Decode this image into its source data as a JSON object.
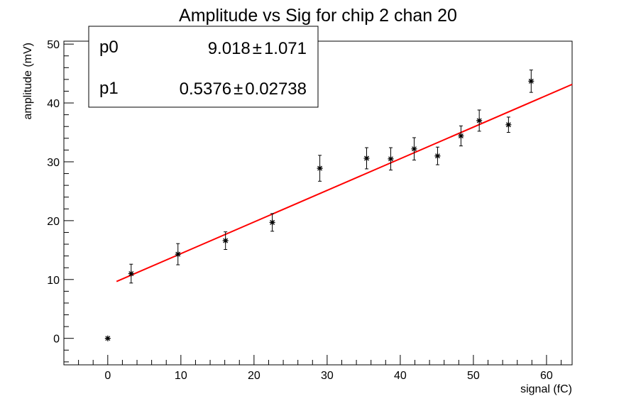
{
  "chart_data": {
    "type": "scatter",
    "title": "Amplitude vs Sig for chip 2 chan 20",
    "xlabel": "signal (fC)",
    "ylabel": "amplitude (mV)",
    "xlim": [
      -6,
      63.5
    ],
    "ylim": [
      -4.5,
      50.5
    ],
    "xticks": [
      0,
      10,
      20,
      30,
      40,
      50,
      60
    ],
    "yticks": [
      0,
      10,
      20,
      30,
      40,
      50
    ],
    "grid": false,
    "marker": "asterisk",
    "series": [
      {
        "points": [
          {
            "x": 0.0,
            "y": 0.0,
            "err": 0.0
          },
          {
            "x": 3.2,
            "y": 11.0,
            "err": 1.6
          },
          {
            "x": 9.6,
            "y": 14.3,
            "err": 1.8
          },
          {
            "x": 16.1,
            "y": 16.6,
            "err": 1.5
          },
          {
            "x": 22.5,
            "y": 19.7,
            "err": 1.5
          },
          {
            "x": 29.0,
            "y": 28.9,
            "err": 2.2
          },
          {
            "x": 35.4,
            "y": 30.6,
            "err": 1.8
          },
          {
            "x": 38.7,
            "y": 30.5,
            "err": 1.9
          },
          {
            "x": 41.9,
            "y": 32.2,
            "err": 1.9
          },
          {
            "x": 45.1,
            "y": 31.0,
            "err": 1.5
          },
          {
            "x": 48.3,
            "y": 34.4,
            "err": 1.7
          },
          {
            "x": 50.8,
            "y": 37.0,
            "err": 1.8
          },
          {
            "x": 54.8,
            "y": 36.3,
            "err": 1.3
          },
          {
            "x": 57.9,
            "y": 43.7,
            "err": 1.9
          }
        ]
      }
    ],
    "fit": {
      "p0": 9.018,
      "p1": 0.5376,
      "x_range": [
        1.2,
        63.5
      ],
      "color": "#ff0000"
    }
  },
  "stats_box": {
    "rows": [
      {
        "name": "p0",
        "value": "9.018",
        "pm": "±",
        "error": "1.071"
      },
      {
        "name": "p1",
        "value": "0.5376",
        "pm": "±",
        "error": "0.02738"
      }
    ]
  }
}
